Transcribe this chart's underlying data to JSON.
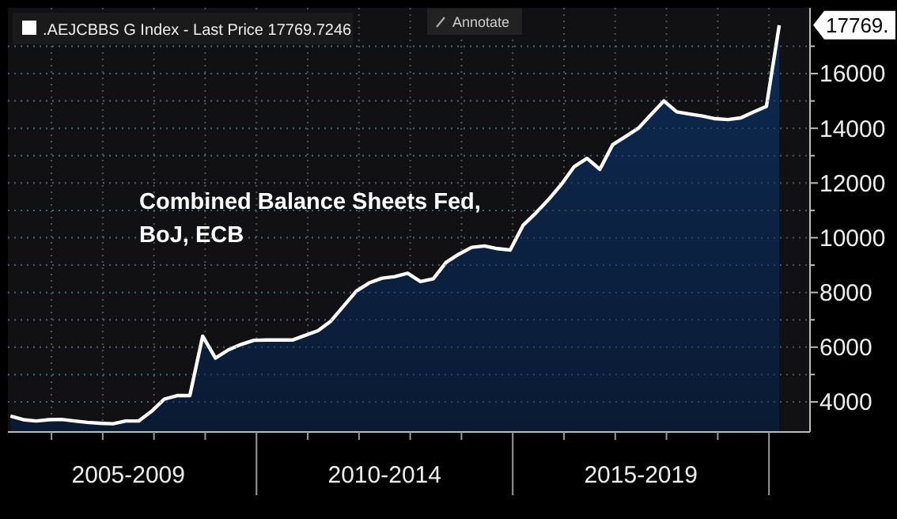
{
  "chart_data": {
    "type": "area",
    "title": "Combined Balance Sheets Fed, BoJ, ECB",
    "legend": "top left",
    "grid": true,
    "ylim": [
      2900,
      18400
    ],
    "categories": [
      null,
      null,
      null,
      null,
      null,
      null,
      null,
      null,
      null,
      null,
      null,
      null,
      null,
      null,
      null,
      null,
      null,
      null,
      null,
      null,
      null,
      null,
      null,
      null,
      null,
      null,
      null,
      null,
      null,
      null,
      null,
      null,
      null,
      null,
      null,
      null,
      null,
      null,
      null,
      null,
      null,
      null,
      null,
      null,
      null,
      null,
      null,
      null,
      null,
      null,
      null,
      null,
      null,
      null,
      null,
      null,
      null,
      null,
      null,
      null,
      null
    ],
    "yticks": [
      4000,
      {
        "value": 5000,
        "label": null
      },
      6000,
      {
        "value": 7000,
        "label": null
      },
      8000,
      {
        "value": 9000,
        "label": null
      },
      10000,
      {
        "value": 11000,
        "label": null
      },
      12000,
      {
        "value": 13000,
        "label": null
      },
      14000,
      {
        "value": 15000,
        "label": null
      },
      16000,
      {
        "value": 17000,
        "label": null
      }
    ],
    "annotations": [
      "Annotate",
      "2005-2009",
      "2010-2014",
      "2015-2019",
      "17769."
    ],
    "series": [
      {
        "name": ".AEJCBBS G Index - Last Price 17769.7246",
        "color": "#ffffff",
        "values": [
          3480,
          3350,
          3300,
          3350,
          3360,
          3300,
          3250,
          3220,
          3200,
          3300,
          3300,
          3650,
          4100,
          4230,
          4230,
          6400,
          5600,
          5900,
          6100,
          6250,
          6260,
          6260,
          6260,
          6430,
          6600,
          6950,
          7500,
          8050,
          8350,
          8520,
          8580,
          8700,
          8400,
          8500,
          9100,
          9400,
          9650,
          9700,
          9600,
          9550,
          10450,
          10900,
          11400,
          11950,
          12600,
          12900,
          12500,
          13400,
          13700,
          14000,
          14500,
          15000,
          14600,
          14520,
          14450,
          14350,
          14320,
          14380,
          14600,
          14800,
          17770
        ]
      }
    ]
  }
}
